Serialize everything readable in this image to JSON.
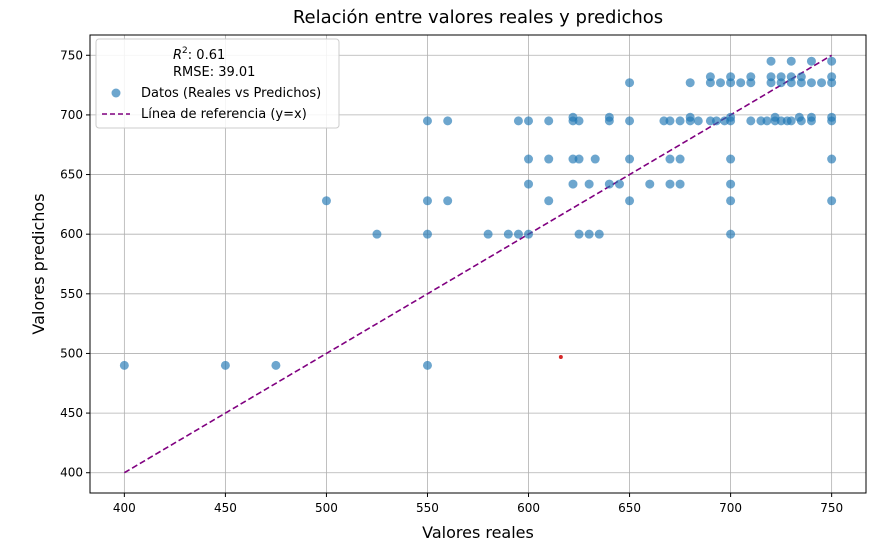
{
  "chart_data": {
    "type": "scatter",
    "title": "Relación entre valores reales y predichos",
    "xlabel": "Valores reales",
    "ylabel": "Valores predichos",
    "xlim": [
      383,
      767
    ],
    "ylim": [
      383,
      767
    ],
    "xticks": [
      400,
      450,
      500,
      550,
      600,
      650,
      700,
      750
    ],
    "yticks": [
      400,
      450,
      500,
      550,
      600,
      650,
      700,
      750
    ],
    "grid": true,
    "legend_position": "top-left",
    "stats": {
      "r2_label": "R",
      "r2_sup": "2",
      "r2_value": ": 0.61",
      "rmse_text": "RMSE: 39.01"
    },
    "series": [
      {
        "name": "Datos (Reales vs Predichos)",
        "kind": "scatter",
        "color": "#1f77b4",
        "points": [
          [
            400,
            490
          ],
          [
            450,
            490
          ],
          [
            475,
            490
          ],
          [
            550,
            490
          ],
          [
            500,
            628
          ],
          [
            550,
            628
          ],
          [
            560,
            628
          ],
          [
            610,
            628
          ],
          [
            650,
            628
          ],
          [
            700,
            628
          ],
          [
            750,
            628
          ],
          [
            525,
            600
          ],
          [
            550,
            600
          ],
          [
            580,
            600
          ],
          [
            590,
            600
          ],
          [
            595,
            600
          ],
          [
            600,
            600
          ],
          [
            625,
            600
          ],
          [
            630,
            600
          ],
          [
            635,
            600
          ],
          [
            700,
            600
          ],
          [
            600,
            642
          ],
          [
            622,
            642
          ],
          [
            630,
            642
          ],
          [
            640,
            642
          ],
          [
            645,
            642
          ],
          [
            660,
            642
          ],
          [
            670,
            642
          ],
          [
            675,
            642
          ],
          [
            700,
            642
          ],
          [
            600,
            663
          ],
          [
            610,
            663
          ],
          [
            622,
            663
          ],
          [
            625,
            663
          ],
          [
            633,
            663
          ],
          [
            650,
            663
          ],
          [
            670,
            663
          ],
          [
            675,
            663
          ],
          [
            700,
            663
          ],
          [
            750,
            663
          ],
          [
            550,
            695
          ],
          [
            560,
            695
          ],
          [
            595,
            695
          ],
          [
            600,
            695
          ],
          [
            610,
            695
          ],
          [
            622,
            695
          ],
          [
            625,
            695
          ],
          [
            640,
            695
          ],
          [
            650,
            695
          ],
          [
            667,
            695
          ],
          [
            670,
            695
          ],
          [
            675,
            695
          ],
          [
            680,
            695
          ],
          [
            684,
            695
          ],
          [
            690,
            695
          ],
          [
            693,
            695
          ],
          [
            697,
            695
          ],
          [
            700,
            695
          ],
          [
            710,
            695
          ],
          [
            715,
            695
          ],
          [
            718,
            695
          ],
          [
            722,
            695
          ],
          [
            725,
            695
          ],
          [
            728,
            695
          ],
          [
            730,
            695
          ],
          [
            735,
            695
          ],
          [
            740,
            695
          ],
          [
            750,
            695
          ],
          [
            622,
            698
          ],
          [
            640,
            698
          ],
          [
            680,
            698
          ],
          [
            700,
            698
          ],
          [
            722,
            698
          ],
          [
            734,
            698
          ],
          [
            740,
            698
          ],
          [
            750,
            698
          ],
          [
            650,
            727
          ],
          [
            680,
            727
          ],
          [
            690,
            727
          ],
          [
            695,
            727
          ],
          [
            700,
            727
          ],
          [
            705,
            727
          ],
          [
            710,
            727
          ],
          [
            720,
            727
          ],
          [
            725,
            727
          ],
          [
            730,
            727
          ],
          [
            735,
            727
          ],
          [
            740,
            727
          ],
          [
            745,
            727
          ],
          [
            750,
            727
          ],
          [
            690,
            732
          ],
          [
            700,
            732
          ],
          [
            710,
            732
          ],
          [
            720,
            732
          ],
          [
            725,
            732
          ],
          [
            730,
            732
          ],
          [
            735,
            732
          ],
          [
            750,
            732
          ],
          [
            720,
            745
          ],
          [
            730,
            745
          ],
          [
            740,
            745
          ],
          [
            750,
            745
          ]
        ]
      },
      {
        "name": "Línea de referencia (y=x)",
        "kind": "line",
        "color": "#800080",
        "x": [
          400,
          750
        ],
        "y": [
          400,
          750
        ]
      },
      {
        "kind": "marker",
        "color": "#d62728",
        "points": [
          [
            616,
            497
          ]
        ]
      }
    ]
  }
}
